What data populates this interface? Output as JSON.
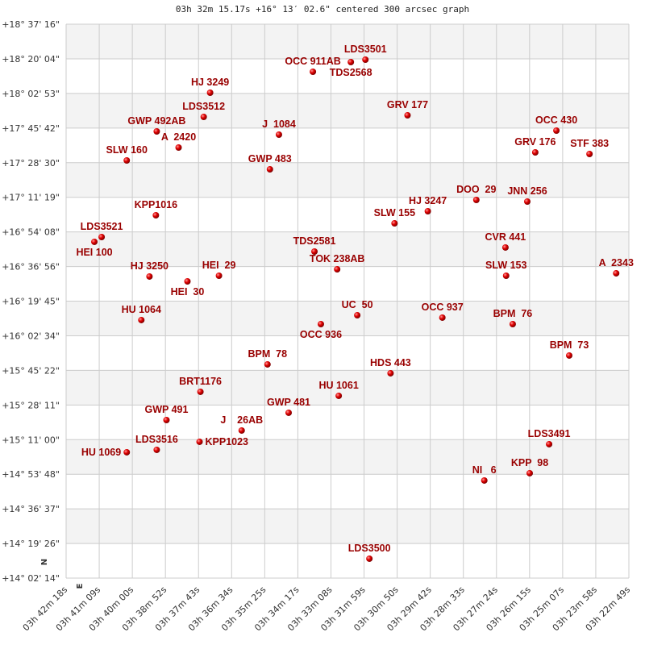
{
  "chart_data": {
    "type": "scatter",
    "title": "03h 32m 15.17s +16° 13′ 02.6\" centered 300 arcsec graph",
    "xlabel": "",
    "ylabel": "",
    "x_units": "right ascension (hours)",
    "y_units": "declination (degrees)",
    "xlim": [
      3.705,
      3.38028
    ],
    "ylim": [
      14.03722,
      18.62111
    ],
    "x_reversed": true,
    "grid": true,
    "banded_rows": true,
    "direction_labels": [
      "N",
      "E"
    ],
    "xticks": [
      "03h 42m 18s",
      "03h 41m 09s",
      "03h 40m 00s",
      "03h 38m 52s",
      "03h 37m 43s",
      "03h 36m 34s",
      "03h 35m 25s",
      "03h 34m 17s",
      "03h 33m 08s",
      "03h 31m 59s",
      "03h 30m 50s",
      "03h 29m 42s",
      "03h 28m 33s",
      "03h 27m 24s",
      "03h 26m 15s",
      "03h 25m 07s",
      "03h 23m 58s",
      "03h 22m 49s"
    ],
    "yticks": [
      "+18° 37' 16\"",
      "+18° 20' 04\"",
      "+18° 02' 53\"",
      "+17° 45' 42\"",
      "+17° 28' 30\"",
      "+17° 11' 19\"",
      "+16° 54' 08\"",
      "+16° 36' 56\"",
      "+16° 19' 45\"",
      "+16° 02' 34\"",
      "+15° 45' 22\"",
      "+15° 28' 11\"",
      "+15° 11' 00\"",
      "+14° 53' 48\"",
      "+14° 36' 37\"",
      "+14° 19' 26\"",
      "+14° 02' 14\""
    ],
    "colors": {
      "point": "#dd0000",
      "label": "#990000",
      "band": "#f3f3f3",
      "grid": "#cccccc"
    },
    "points": [
      {
        "name": "LDS3501",
        "ra": 3.5323,
        "dec": 18.3275
      },
      {
        "name": "TDS2568",
        "ra": 3.5407,
        "dec": 18.3075
      },
      {
        "name": "OCC 911AB",
        "ra": 3.5626,
        "dec": 18.2275
      },
      {
        "name": "HJ 3249",
        "ra": 3.6219,
        "dec": 18.054
      },
      {
        "name": "LDS3512",
        "ra": 3.6256,
        "dec": 17.8538
      },
      {
        "name": "GRV 177",
        "ra": 3.508,
        "dec": 17.8672
      },
      {
        "name": "OCC 430",
        "ra": 3.4221,
        "dec": 17.7404
      },
      {
        "name": "GWP 492AB",
        "ra": 3.6527,
        "dec": 17.7337
      },
      {
        "name": "J  1084",
        "ra": 3.5822,
        "dec": 17.707
      },
      {
        "name": "A  2420",
        "ra": 3.6401,
        "dec": 17.6003
      },
      {
        "name": "GRV 176",
        "ra": 3.4343,
        "dec": 17.5603
      },
      {
        "name": "STF 383",
        "ra": 3.403,
        "dec": 17.5469
      },
      {
        "name": "SLW 160",
        "ra": 3.67,
        "dec": 17.4935
      },
      {
        "name": "GWP 483",
        "ra": 3.5874,
        "dec": 17.4201
      },
      {
        "name": "DOO  29",
        "ra": 3.4683,
        "dec": 17.1666
      },
      {
        "name": "JNN 256",
        "ra": 3.4389,
        "dec": 17.1533
      },
      {
        "name": "HJ 3247",
        "ra": 3.4963,
        "dec": 17.0732
      },
      {
        "name": "KPP1016",
        "ra": 3.6532,
        "dec": 17.0398
      },
      {
        "name": "SLW 155",
        "ra": 3.5155,
        "dec": 16.9731
      },
      {
        "name": "LDS3521",
        "ra": 3.6845,
        "dec": 16.8597
      },
      {
        "name": "HEI 100",
        "ra": 3.6887,
        "dec": 16.8197
      },
      {
        "name": "CVR 441",
        "ra": 3.4515,
        "dec": 16.773
      },
      {
        "name": "TDS2581",
        "ra": 3.5617,
        "dec": 16.7396
      },
      {
        "name": "TOK 238AB",
        "ra": 3.5486,
        "dec": 16.5928
      },
      {
        "name": "SLW 153",
        "ra": 3.4511,
        "dec": 16.5394
      },
      {
        "name": "A  2343",
        "ra": 3.3876,
        "dec": 16.5595
      },
      {
        "name": "HJ 3250",
        "ra": 3.6569,
        "dec": 16.5328
      },
      {
        "name": "HEI  29",
        "ra": 3.6168,
        "dec": 16.5394
      },
      {
        "name": "HEI  30",
        "ra": 3.635,
        "dec": 16.4927
      },
      {
        "name": "UC  50",
        "ra": 3.537,
        "dec": 16.2125
      },
      {
        "name": "OCC 936",
        "ra": 3.558,
        "dec": 16.1391
      },
      {
        "name": "OCC 937",
        "ra": 3.4879,
        "dec": 16.1925
      },
      {
        "name": "BPM  76",
        "ra": 3.4473,
        "dec": 16.1391
      },
      {
        "name": "HU 1064",
        "ra": 3.6616,
        "dec": 16.1725
      },
      {
        "name": "BPM  73",
        "ra": 3.4147,
        "dec": 15.8789
      },
      {
        "name": "BPM  78",
        "ra": 3.5888,
        "dec": 15.8055
      },
      {
        "name": "HDS 443",
        "ra": 3.5178,
        "dec": 15.7321
      },
      {
        "name": "BRT1176",
        "ra": 3.6275,
        "dec": 15.5787
      },
      {
        "name": "HU 1061",
        "ra": 3.5477,
        "dec": 15.5453
      },
      {
        "name": "GWP 481",
        "ra": 3.5766,
        "dec": 15.4052
      },
      {
        "name": "GWP 491",
        "ra": 3.6471,
        "dec": 15.3451
      },
      {
        "name": "J    26AB",
        "ra": 3.6037,
        "dec": 15.2584
      },
      {
        "name": "KPP1023",
        "ra": 3.628,
        "dec": 15.165
      },
      {
        "name": "HU 1069",
        "ra": 3.67,
        "dec": 15.0783
      },
      {
        "name": "LDS3516",
        "ra": 3.6527,
        "dec": 15.0983
      },
      {
        "name": "LDS3491",
        "ra": 3.4263,
        "dec": 15.145
      },
      {
        "name": "NI   6",
        "ra": 3.4637,
        "dec": 14.8447
      },
      {
        "name": "KPP  98",
        "ra": 3.4375,
        "dec": 14.9048
      },
      {
        "name": "LDS3500",
        "ra": 3.53,
        "dec": 14.1976
      }
    ]
  }
}
